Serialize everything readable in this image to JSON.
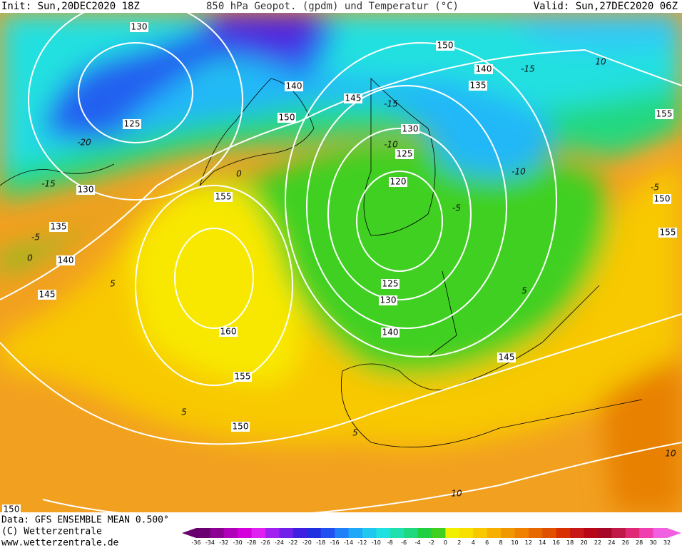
{
  "header": {
    "init": "Init: Sun,20DEC2020 18Z",
    "title": "850 hPa Geopot. (gpdm) und Temperatur (°C)",
    "valid": "Valid: Sun,27DEC2020 06Z"
  },
  "map": {
    "height_labels": [
      "130",
      "125",
      "130",
      "135",
      "140",
      "145",
      "155",
      "160",
      "155",
      "150",
      "150",
      "140",
      "145",
      "150",
      "140",
      "135",
      "130",
      "125",
      "120",
      "125",
      "130",
      "140",
      "145",
      "155",
      "150",
      "155",
      "150"
    ],
    "temperature_labels": [
      "-20",
      "-15",
      "-5",
      "0",
      "5",
      "0",
      "-15",
      "-15",
      "-10",
      "-10",
      "-5",
      "5",
      "10",
      "-5",
      "5",
      "10",
      "10",
      "5"
    ]
  },
  "footer": {
    "data_source": "Data: GFS ENSEMBLE MEAN 0.500°",
    "copyright": "(C) Wetterzentrale",
    "url": "www.wetterzentrale.de"
  },
  "legend": {
    "labels": [
      -36,
      -34,
      -32,
      -30,
      -28,
      -26,
      -24,
      -22,
      -20,
      -18,
      -16,
      -14,
      -12,
      -10,
      -8,
      -6,
      -4,
      -2,
      0,
      2,
      4,
      6,
      8,
      10,
      12,
      14,
      16,
      18,
      20,
      22,
      24,
      26,
      28,
      30,
      32
    ],
    "colors": [
      "#6a0070",
      "#8c0094",
      "#b000b8",
      "#d400dc",
      "#e020f0",
      "#a020f0",
      "#7020e8",
      "#4020e0",
      "#2030e0",
      "#2050f0",
      "#2080f8",
      "#20a8f8",
      "#20c8f0",
      "#20e0e0",
      "#20e0b0",
      "#20d880",
      "#20d040",
      "#40d020",
      "#f0f000",
      "#f8e000",
      "#f8c800",
      "#f8b000",
      "#f09800",
      "#f08000",
      "#e86800",
      "#e05000",
      "#d83000",
      "#c81818",
      "#b80818",
      "#a80828",
      "#c01848",
      "#e02878",
      "#f040b0",
      "#f060e0"
    ]
  }
}
